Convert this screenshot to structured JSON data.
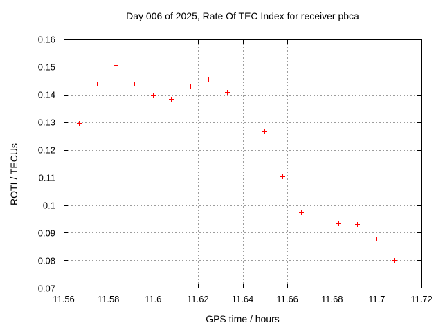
{
  "chart_data": {
    "type": "scatter",
    "title": "Day 006 of 2025, Rate Of TEC Index for receiver pbca",
    "xlabel": "GPS time / hours",
    "ylabel": "ROTI / TECUs",
    "xlim": [
      11.56,
      11.72
    ],
    "ylim": [
      0.07,
      0.16
    ],
    "grid": "dotted",
    "legend": "none",
    "marker": {
      "shape": "plus",
      "color": "#ff0000",
      "size": 7
    },
    "xticks": {
      "values": [
        11.56,
        11.58,
        11.6,
        11.62,
        11.64,
        11.66,
        11.68,
        11.7,
        11.72
      ],
      "labels": [
        "11.56",
        "11.58",
        "11.6",
        "11.62",
        "11.64",
        "11.66",
        "11.68",
        "11.7",
        "11.72"
      ]
    },
    "yticks": {
      "values": [
        0.07,
        0.08,
        0.09,
        0.1,
        0.11,
        0.12,
        0.13,
        0.14,
        0.15,
        0.16
      ],
      "labels": [
        "0.07",
        "0.08",
        "0.09",
        "0.1",
        "0.11",
        "0.12",
        "0.13",
        "0.14",
        "0.15",
        "0.16"
      ]
    },
    "series": [
      {
        "name": "ROTI",
        "x": [
          11.5667,
          11.575,
          11.5833,
          11.5917,
          11.6,
          11.6083,
          11.6167,
          11.625,
          11.6333,
          11.6417,
          11.65,
          11.6583,
          11.6667,
          11.675,
          11.6833,
          11.6917,
          11.7,
          11.7083
        ],
        "y": [
          0.1297,
          0.144,
          0.1507,
          0.1438,
          0.1397,
          0.1385,
          0.1431,
          0.1454,
          0.1409,
          0.1324,
          0.1266,
          0.1101,
          0.0971,
          0.0949,
          0.0932,
          0.093,
          0.0875,
          0.0798
        ]
      }
    ]
  }
}
